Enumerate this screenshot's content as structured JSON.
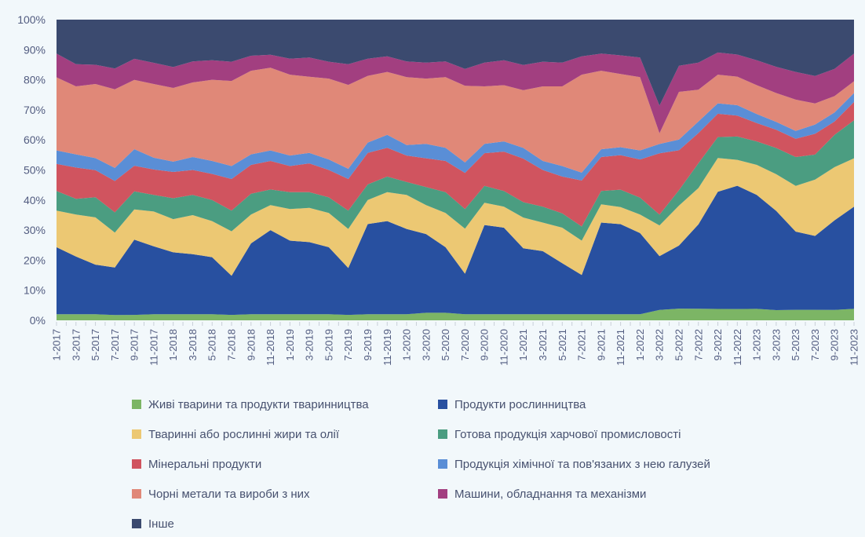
{
  "page": {
    "background": "#f2f8fb"
  },
  "chart_data": {
    "type": "area",
    "stacked": true,
    "normalized_percent": true,
    "title": "",
    "xlabel": "",
    "ylabel": "",
    "ylim": [
      0,
      100
    ],
    "grid": false,
    "legend_position": "bottom",
    "y_ticks": [
      "0%",
      "10%",
      "20%",
      "30%",
      "40%",
      "50%",
      "60%",
      "70%",
      "80%",
      "90%",
      "100%"
    ],
    "x_labels": [
      "1-2017",
      "3-2017",
      "5-2017",
      "7-2017",
      "9-2017",
      "11-2017",
      "1-2018",
      "3-2018",
      "5-2018",
      "7-2018",
      "9-2018",
      "11-2018",
      "1-2019",
      "3-2019",
      "5-2019",
      "7-2019",
      "9-2019",
      "11-2019",
      "1-2020",
      "3-2020",
      "5-2020",
      "7-2020",
      "9-2020",
      "11-2020",
      "1-2021",
      "3-2021",
      "5-2021",
      "7-2021",
      "9-2021",
      "11-2021",
      "1-2022",
      "3-2022",
      "5-2022",
      "7-2022",
      "9-2022",
      "11-2022",
      "1-2023",
      "3-2023",
      "5-2023",
      "7-2023",
      "9-2023",
      "11-2023"
    ],
    "minor_ticks_per_interval": 2,
    "series": [
      {
        "name": "Живі тварини та продукти тваринництва",
        "slug": "live-animals",
        "color": "#7cb565",
        "values": [
          2,
          2,
          2,
          1.8,
          1.8,
          2,
          2,
          2,
          2,
          1.8,
          2,
          2,
          2,
          2,
          2,
          1.8,
          2,
          2,
          2,
          2.5,
          2.5,
          2,
          2,
          2,
          2,
          2,
          2,
          2,
          2,
          2,
          2,
          3.4,
          3.8,
          3.5,
          3.8,
          3.8,
          3.8,
          3.4,
          3.5,
          3.5,
          3.5,
          3.8
        ]
      },
      {
        "name": "Продукти рослинництва",
        "slug": "plant-products",
        "color": "#2850a0",
        "values": [
          22.3,
          19.2,
          16.5,
          16,
          25,
          22.5,
          20.5,
          20,
          19,
          13,
          23.6,
          28,
          24.5,
          24,
          22.3,
          15.6,
          30,
          31,
          28.4,
          26.2,
          21.8,
          13.5,
          29.7,
          28.8,
          21.5,
          21,
          17,
          13.1,
          30.5,
          29.5,
          27,
          17.5,
          20.5,
          25.5,
          39.2,
          41.3,
          37.9,
          33,
          26,
          24.5,
          30,
          34
        ]
      },
      {
        "name": "Тваринні або рослинні жири та олії",
        "slug": "fats-and-oils",
        "color": "#ecc873",
        "values": [
          12.2,
          14,
          15.7,
          11.8,
          10,
          11.5,
          11,
          13,
          12,
          14.8,
          9.6,
          8.3,
          10.5,
          11.4,
          11.4,
          13,
          8,
          9.6,
          11.3,
          9.6,
          11.4,
          15,
          7.4,
          7,
          10,
          9.5,
          11.8,
          11.4,
          6.1,
          5.6,
          6.2,
          10,
          13,
          11,
          11.3,
          8.7,
          10,
          12.2,
          15.2,
          18.7,
          17.8,
          16.1
        ]
      },
      {
        "name": "Готова продукція харчової промисловості",
        "slug": "food-industry-products",
        "color": "#4b9d81",
        "values": [
          6.5,
          5.2,
          6.7,
          6.8,
          6,
          5.5,
          6.9,
          6.7,
          7,
          6.9,
          6.9,
          5.2,
          5.6,
          5.2,
          5.2,
          6.1,
          5.2,
          5.2,
          4.3,
          6,
          6.9,
          6.5,
          5.6,
          5.2,
          5,
          5.3,
          4.8,
          4.7,
          4.4,
          5.7,
          5.6,
          3.5,
          5,
          7.5,
          7,
          7.8,
          7.8,
          8.7,
          9.6,
          8.3,
          10.8,
          12.6
        ]
      },
      {
        "name": "Мінеральні продукти",
        "slug": "mineral-products",
        "color": "#d0545f",
        "values": [
          9,
          10.4,
          9,
          10.6,
          8.5,
          8.4,
          8.7,
          8.3,
          8.7,
          10.5,
          9.6,
          9.5,
          8.7,
          9.6,
          9.1,
          10.5,
          10.5,
          9.6,
          8.8,
          9.6,
          10.4,
          12,
          10.9,
          13.1,
          14.2,
          12.2,
          12.2,
          15.3,
          11.3,
          11.3,
          12.7,
          20,
          13,
          9.1,
          7.8,
          7,
          6.1,
          6.1,
          6.1,
          6.9,
          4.5,
          6.1
        ]
      },
      {
        "name": "Продукція хімічної та пов'язаних з нею галузей",
        "slug": "chemical-products",
        "color": "#5a8ed6",
        "values": [
          4.5,
          4.4,
          4,
          4.4,
          5.5,
          3.9,
          3.4,
          4.3,
          4.3,
          4.3,
          3.5,
          3.5,
          3.5,
          3.5,
          3.5,
          3.4,
          3.4,
          4.3,
          3.5,
          4.8,
          4.4,
          3.5,
          3.1,
          3.4,
          3.5,
          3,
          3.5,
          2.6,
          2.6,
          2.6,
          3,
          3,
          3.5,
          3.5,
          3.5,
          3.5,
          3,
          2.6,
          2.6,
          3.1,
          3,
          3
        ]
      },
      {
        "name": "Чорні метали та вироби з них",
        "slug": "ferrous-metals",
        "color": "#e08878",
        "values": [
          24.3,
          22.6,
          24.6,
          26.5,
          23,
          24.4,
          24.4,
          24.8,
          27,
          28.3,
          27.8,
          27.5,
          26.9,
          25.3,
          26.9,
          27.9,
          22.2,
          20.9,
          22.6,
          21.7,
          23.5,
          25.5,
          19.1,
          18.7,
          18.8,
          24.8,
          26.5,
          32.6,
          26.1,
          24,
          24.4,
          3.5,
          15.5,
          9.6,
          9.6,
          9.6,
          9.6,
          9.6,
          10.4,
          7,
          5.5,
          3.9
        ]
      },
      {
        "name": "Машини, обладнання та механізми",
        "slug": "machinery-equipment",
        "color": "#a23f80",
        "values": [
          7.9,
          7.4,
          6.4,
          7,
          7,
          7,
          6.9,
          7,
          6.5,
          6.4,
          5,
          4.3,
          5.3,
          6.4,
          5.6,
          6.9,
          5.7,
          5.2,
          5.2,
          5.3,
          5.2,
          5.6,
          7.9,
          8.3,
          8.2,
          8.2,
          7.9,
          6.1,
          5.7,
          6.1,
          6.5,
          9,
          8.5,
          8.2,
          7.4,
          7.4,
          8.3,
          8.7,
          9.2,
          9.1,
          9.1,
          9.2
        ]
      },
      {
        "name": "Інше",
        "slug": "other",
        "color": "#3b4a6f",
        "values": [
          11.3,
          14.8,
          15,
          16.5,
          13,
          14.3,
          15.7,
          13.9,
          13.5,
          14,
          12,
          11.7,
          13,
          12.6,
          14,
          14.8,
          13,
          12.2,
          13.9,
          14.3,
          13.9,
          16.4,
          14.3,
          13.5,
          14.8,
          14,
          14.3,
          12.2,
          11.3,
          11.7,
          12.6,
          28,
          15,
          13,
          11,
          11.7,
          13.5,
          15.7,
          17.4,
          18.7,
          16.5,
          11.3
        ]
      }
    ],
    "legend_columns": [
      [
        0,
        2,
        4,
        6,
        8
      ],
      [
        1,
        3,
        5,
        7
      ]
    ]
  }
}
